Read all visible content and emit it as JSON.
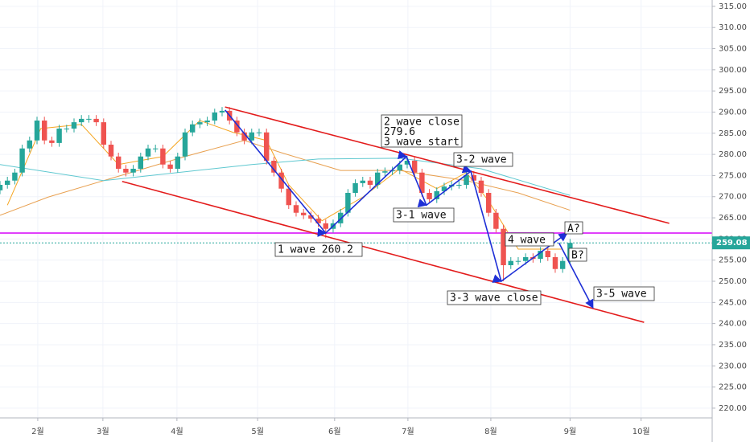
{
  "chart_data": {
    "type": "candlestick",
    "open": [
      271.5,
      272.8,
      273.8,
      275.7,
      281.4,
      283.3,
      288.0,
      283.3,
      282.7,
      286.1,
      286.1,
      287.6,
      288.4,
      288.4,
      287.6,
      282.3,
      279.5,
      276.6,
      275.7,
      276.6,
      279.5,
      281.4,
      281.4,
      277.6,
      276.6,
      279.5,
      285.2,
      287.1,
      287.6,
      288.0,
      289.9,
      290.3,
      288.0,
      285.2,
      283.3,
      285.2,
      285.2,
      278.5,
      275.7,
      271.9,
      268.0,
      266.2,
      265.6,
      264.8,
      263.7,
      262.4,
      263.7,
      266.2,
      270.9,
      273.2,
      273.8,
      272.8,
      275.7,
      276.0,
      276.2,
      277.6,
      278.5,
      275.7,
      270.9,
      269.4,
      271.3,
      272.4,
      272.8,
      272.8,
      275.1,
      273.8,
      270.9,
      266.2,
      262.4,
      253.8,
      254.8,
      254.8,
      255.7,
      255.3,
      257.2,
      255.7,
      252.9,
      254.8
    ],
    "high": [
      273.7,
      274.7,
      276.6,
      282.3,
      284.2,
      288.9,
      288.9,
      284.2,
      287.0,
      287.0,
      288.5,
      289.3,
      289.3,
      289.3,
      288.5,
      283.2,
      280.4,
      277.5,
      277.5,
      280.4,
      282.3,
      282.3,
      282.3,
      278.5,
      280.4,
      286.1,
      288.0,
      288.5,
      288.9,
      290.8,
      291.2,
      291.2,
      288.9,
      286.1,
      286.1,
      286.1,
      286.1,
      279.4,
      276.6,
      272.8,
      268.9,
      267.1,
      266.5,
      265.7,
      264.6,
      264.6,
      267.1,
      271.8,
      274.1,
      274.7,
      274.7,
      276.6,
      276.9,
      277.1,
      278.5,
      279.6,
      279.4,
      276.6,
      271.8,
      272.2,
      273.3,
      273.7,
      273.7,
      276.0,
      276.0,
      274.7,
      271.8,
      267.1,
      263.3,
      255.7,
      255.7,
      256.6,
      256.6,
      258.1,
      258.1,
      256.6,
      255.7,
      260.0
    ],
    "low": [
      270.6,
      271.9,
      272.9,
      274.8,
      280.5,
      282.4,
      282.4,
      281.8,
      281.8,
      285.2,
      285.2,
      286.7,
      287.5,
      286.7,
      281.4,
      278.6,
      275.7,
      274.8,
      274.8,
      275.7,
      278.6,
      280.5,
      276.7,
      275.7,
      275.7,
      278.6,
      284.3,
      286.2,
      286.7,
      287.1,
      289.0,
      287.1,
      284.3,
      282.4,
      282.4,
      284.3,
      277.6,
      274.8,
      271.0,
      267.1,
      265.3,
      264.7,
      263.9,
      262.8,
      260.2,
      261.5,
      262.8,
      265.3,
      270.0,
      272.3,
      271.9,
      271.9,
      274.8,
      275.1,
      275.3,
      276.7,
      274.8,
      270.0,
      268.5,
      268.5,
      270.4,
      271.5,
      271.9,
      271.9,
      272.9,
      270.0,
      265.3,
      261.5,
      250.0,
      252.9,
      253.9,
      253.9,
      254.4,
      254.4,
      254.8,
      252.0,
      252.0,
      253.9
    ],
    "close": [
      272.8,
      273.8,
      275.7,
      281.4,
      283.3,
      288.0,
      283.3,
      282.7,
      286.1,
      286.1,
      287.6,
      288.4,
      288.4,
      287.6,
      282.3,
      279.5,
      276.6,
      275.7,
      276.6,
      279.5,
      281.4,
      281.4,
      277.6,
      276.6,
      279.5,
      285.2,
      287.1,
      287.6,
      288.0,
      289.9,
      290.3,
      288.0,
      285.2,
      283.3,
      285.2,
      285.2,
      278.5,
      275.7,
      271.9,
      268.0,
      266.2,
      265.6,
      264.8,
      263.7,
      262.4,
      263.7,
      266.2,
      270.9,
      273.2,
      273.8,
      272.8,
      275.7,
      276.0,
      276.2,
      277.6,
      278.5,
      275.7,
      270.9,
      269.4,
      271.3,
      272.4,
      272.8,
      272.8,
      275.1,
      273.8,
      270.9,
      266.2,
      262.4,
      253.8,
      254.8,
      254.8,
      255.7,
      255.3,
      257.2,
      255.7,
      252.9,
      254.8,
      259.08
    ],
    "up_color": "#26a69a",
    "down_color": "#ef5350",
    "xlim": [
      0,
      96.2
    ],
    "xticks": [
      {
        "value": 5.1,
        "label": "2월"
      },
      {
        "value": 13.9,
        "label": "3월"
      },
      {
        "value": 23.9,
        "label": "4월"
      },
      {
        "value": 34.8,
        "label": "5월"
      },
      {
        "value": 45.2,
        "label": "6월"
      },
      {
        "value": 55.1,
        "label": "7월"
      },
      {
        "value": 66.3,
        "label": "8월"
      },
      {
        "value": 77.0,
        "label": "9월"
      },
      {
        "value": 86.6,
        "label": "10월"
      }
    ],
    "ylim": [
      217.7,
      316.5
    ],
    "yticks": [
      {
        "value": 220,
        "label": "220.00"
      },
      {
        "value": 225,
        "label": "225.00"
      },
      {
        "value": 230,
        "label": "230.00"
      },
      {
        "value": 235,
        "label": "235.00"
      },
      {
        "value": 240,
        "label": "240.00"
      },
      {
        "value": 245,
        "label": "245.00"
      },
      {
        "value": 250,
        "label": "250.00"
      },
      {
        "value": 255,
        "label": "255.00"
      },
      {
        "value": 260,
        "label": "260.00"
      },
      {
        "value": 265,
        "label": "265.00"
      },
      {
        "value": 270,
        "label": "270.00"
      },
      {
        "value": 275,
        "label": "275.00"
      },
      {
        "value": 280,
        "label": "280.00"
      },
      {
        "value": 285,
        "label": "285.00"
      },
      {
        "value": 290,
        "label": "290.00"
      },
      {
        "value": 295,
        "label": "295.00"
      },
      {
        "value": 300,
        "label": "300.00"
      },
      {
        "value": 305,
        "label": "305.00"
      },
      {
        "value": 310,
        "label": "310.00"
      },
      {
        "value": 315,
        "label": "315.00"
      }
    ],
    "grid": true,
    "lines": [
      {
        "color": "#f5a623",
        "x": [
          1,
          5.5,
          11,
          16,
          22,
          27,
          31.5,
          36,
          39,
          43.5,
          49,
          54,
          59,
          63,
          66,
          70,
          76
        ],
        "values": [
          268.0,
          286.1,
          287.1,
          277.6,
          279.5,
          288.0,
          285.2,
          283.3,
          272.8,
          264.3,
          269.9,
          276.6,
          271.9,
          275.7,
          269.0,
          257.6,
          257.6
        ]
      },
      {
        "color": "#e8a050",
        "x": [
          0,
          6.5,
          14,
          25,
          33,
          38,
          46,
          54,
          63,
          70,
          77
        ],
        "values": [
          265.6,
          269.9,
          273.8,
          279.5,
          283.3,
          280.4,
          276.2,
          276.2,
          273.8,
          270.9,
          266.8
        ]
      },
      {
        "color": "#5fc8d0",
        "x": [
          0,
          14,
          34,
          43,
          54,
          65,
          77
        ],
        "values": [
          277.6,
          273.8,
          277.6,
          278.9,
          279.1,
          276.6,
          270.3
        ]
      }
    ],
    "trendlines": [
      {
        "color": "#e31c1c",
        "x": [
          30.4,
          90.4
        ],
        "values": [
          291.2,
          263.7
        ]
      },
      {
        "color": "#e31c1c",
        "x": [
          16.5,
          87.0
        ],
        "values": [
          273.6,
          240.3
        ]
      },
      {
        "color": "#1e2fd6",
        "x": [
          30.4,
          44.0,
          54.9,
          57.6,
          63.6,
          67.7,
          76.6
        ],
        "values": [
          290.5,
          261.4,
          279.5,
          268.0,
          276.0,
          250.0,
          261.4
        ]
      },
      {
        "color": "#1e2fd6",
        "x": [
          75.5,
          80.1
        ],
        "values": [
          259.1,
          243.7
        ]
      }
    ],
    "levels": [
      {
        "value": 261.4,
        "color": "#e040fb",
        "style": "solid"
      },
      {
        "value": 259.08,
        "color": "#26a69a",
        "style": "dotted"
      }
    ],
    "annotations": [
      [
        "2 wave close",
        "279.6",
        "3 wave start"
      ],
      [
        "3-2 wave"
      ],
      [
        "3-1 wave"
      ],
      [
        "1 wave 260.2"
      ],
      [
        "4 wave"
      ],
      [
        "A?"
      ],
      [
        "B?"
      ],
      [
        "3-3 wave close"
      ],
      [
        "3-5 wave"
      ]
    ],
    "last_price": 259.08,
    "last_price_color": "#26a69a"
  }
}
